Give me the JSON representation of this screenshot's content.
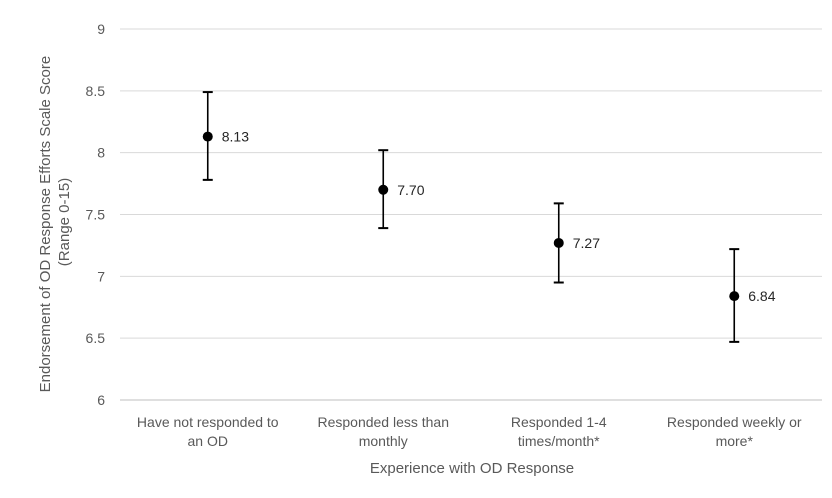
{
  "chart_data": {
    "type": "scatter",
    "title": "",
    "xlabel": "Experience with OD Response",
    "ylabel_lines": [
      "Endorsement of OD Response Efforts Scale Score",
      "(Range 0-15)"
    ],
    "ylim": [
      6,
      9
    ],
    "yticks": [
      "6",
      "6.5",
      "7",
      "7.5",
      "8",
      "8.5",
      "9"
    ],
    "grid": true,
    "legend": "none",
    "categories": [
      [
        "Have not responded to",
        "an OD"
      ],
      [
        "Responded less than",
        "monthly"
      ],
      [
        "Responded 1-4",
        "times/month*"
      ],
      [
        "Responded weekly or",
        "more*"
      ]
    ],
    "series": [
      {
        "values": [
          8.13,
          7.7,
          7.27,
          6.84
        ],
        "labels": [
          "8.13",
          "7.70",
          "7.27",
          "6.84"
        ],
        "error_low": [
          7.78,
          7.39,
          6.95,
          6.47
        ],
        "error_high": [
          8.49,
          8.02,
          7.59,
          7.22
        ]
      }
    ],
    "colors": {
      "marker": "#000000",
      "grid": "#d9d9d9",
      "text": "#595959"
    }
  }
}
